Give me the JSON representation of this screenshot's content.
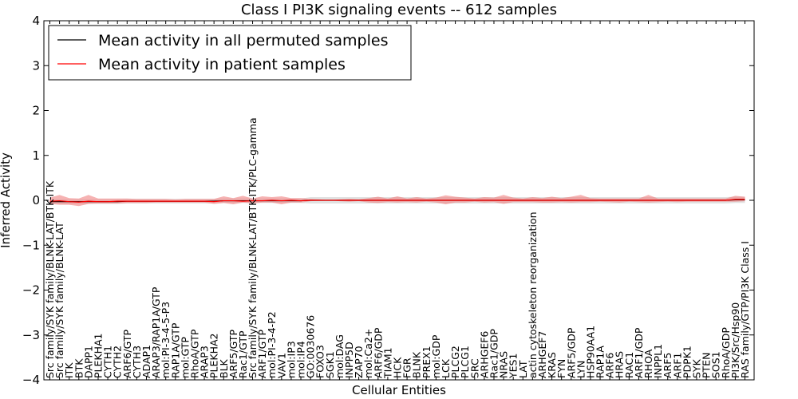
{
  "chart_data": {
    "type": "line",
    "title": "Class I PI3K signaling events -- 612 samples",
    "xlabel": "Cellular Entities",
    "ylabel": "Inferred Activity",
    "ylim": [
      -4,
      4
    ],
    "yticks": [
      -4,
      -3,
      -2,
      -1,
      0,
      1,
      2,
      3,
      4
    ],
    "ytick_labels": [
      "−4",
      "−3",
      "−2",
      "−1",
      "0",
      "1",
      "2",
      "3",
      "4"
    ],
    "legend_position": "top-left",
    "categories": [
      "Src family/SYK family/BLNK-LAT/BTK-ITK",
      "Src family/SYK family/BLNK-LAT",
      "ITK",
      "BTK",
      "DAPP1",
      "PLEKHA1",
      "CYTH1",
      "CYTH2",
      "ARF6/GTP",
      "CYTH3",
      "ADAP1",
      "ARAP3/RAP1A/GTP",
      "mol:PI-3-4-5-P3",
      "RAP1A/GTP",
      "mol:GTP",
      "RhoA/GTP",
      "ARAP3",
      "PLEKHA2",
      "BLK",
      "ARF5/GTP",
      "Rac1/GTP",
      "Src family/SYK family/BLNK-LAT/BTK-ITK/PLC-gamma",
      "ARF1/GTP",
      "mol:PI-3-4-P2",
      "VAV1",
      "mol:IP3",
      "mol:IP4",
      "GO:0030676",
      "FOXO3",
      "SGK1",
      "mol:DAG",
      "INPP5D",
      "ZAP70",
      "mol:Ca2+",
      "ARF6/GDP",
      "TIAM1",
      "HCK",
      "FGR",
      "BLNK",
      "PREX1",
      "mol:GDP",
      "LCK",
      "PLCG2",
      "PLCG1",
      "SRC",
      "ARHGEF6",
      "Rac1/GDP",
      "NRAS",
      "YES1",
      "LAT",
      "actin cytoskeleton reorganization",
      "ARHGEF7",
      "KRAS",
      "FYN",
      "ARF5/GDP",
      "LYN",
      "HSP90AA1",
      "RAP1A",
      "ARF6",
      "HRAS",
      "RAC1",
      "ARF1/GDP",
      "RHOA",
      "INPPL1",
      "ARF5",
      "ARF1",
      "PDPK1",
      "SYK",
      "PTEN",
      "SOS1",
      "RhoA/GDP",
      "PI3K/Src/Hsp90",
      "RAS family/GTP/PI3K Class I"
    ],
    "series": [
      {
        "name": "Mean activity in all permuted samples",
        "color": "#000000",
        "values": [
          -0.03,
          -0.03,
          -0.03,
          -0.03,
          -0.03,
          -0.03,
          -0.03,
          -0.03,
          -0.02,
          -0.02,
          -0.02,
          -0.02,
          -0.02,
          -0.02,
          -0.02,
          -0.02,
          -0.02,
          -0.02,
          -0.01,
          -0.01,
          -0.01,
          -0.01,
          -0.01,
          -0.01,
          -0.01,
          -0.01,
          -0.01,
          0,
          0,
          0,
          0,
          0,
          0,
          0,
          0,
          0,
          0,
          0,
          0,
          0,
          0,
          0,
          0,
          0,
          0,
          0,
          0,
          0,
          0,
          0,
          0,
          0,
          0,
          0,
          0,
          0,
          0,
          0,
          0,
          0,
          0,
          0,
          0,
          0,
          0,
          0,
          0,
          0,
          0,
          0,
          0,
          0.01,
          0.01
        ],
        "band_lower": [
          -0.08,
          -0.08,
          -0.08,
          -0.08,
          -0.08,
          -0.08,
          -0.08,
          -0.08,
          -0.07,
          -0.07,
          -0.07,
          -0.07,
          -0.07,
          -0.07,
          -0.07,
          -0.07,
          -0.07,
          -0.07,
          -0.06,
          -0.06,
          -0.06,
          -0.06,
          -0.06,
          -0.06,
          -0.06,
          -0.06,
          -0.06,
          -0.07,
          -0.07,
          -0.07,
          -0.07,
          -0.07,
          -0.07,
          -0.07,
          -0.07,
          -0.07,
          -0.07,
          -0.07,
          -0.07,
          -0.07,
          -0.07,
          -0.07,
          -0.07,
          -0.07,
          -0.07,
          -0.07,
          -0.07,
          -0.07,
          -0.07,
          -0.07,
          -0.07,
          -0.07,
          -0.07,
          -0.07,
          -0.07,
          -0.07,
          -0.07,
          -0.07,
          -0.07,
          -0.07,
          -0.07,
          -0.07,
          -0.07,
          -0.07,
          -0.07,
          -0.07,
          -0.07,
          -0.07,
          -0.07,
          -0.07,
          -0.07,
          -0.06,
          -0.06
        ],
        "band_upper": [
          0.02,
          0.02,
          0.02,
          0.02,
          0.02,
          0.02,
          0.02,
          0.02,
          0.03,
          0.03,
          0.03,
          0.03,
          0.03,
          0.03,
          0.03,
          0.03,
          0.03,
          0.03,
          0.04,
          0.04,
          0.04,
          0.04,
          0.04,
          0.04,
          0.04,
          0.04,
          0.04,
          0.07,
          0.07,
          0.07,
          0.07,
          0.07,
          0.07,
          0.07,
          0.07,
          0.07,
          0.07,
          0.07,
          0.07,
          0.07,
          0.07,
          0.07,
          0.07,
          0.07,
          0.07,
          0.07,
          0.07,
          0.07,
          0.07,
          0.07,
          0.07,
          0.07,
          0.07,
          0.07,
          0.07,
          0.07,
          0.07,
          0.07,
          0.07,
          0.07,
          0.07,
          0.07,
          0.07,
          0.07,
          0.07,
          0.07,
          0.07,
          0.07,
          0.07,
          0.07,
          0.07,
          0.08,
          0.08
        ]
      },
      {
        "name": "Mean activity in patient samples",
        "color": "#ff0000",
        "values": [
          -0.02,
          -0.01,
          -0.03,
          -0.04,
          -0.02,
          -0.03,
          -0.03,
          -0.02,
          -0.02,
          -0.02,
          -0.02,
          -0.02,
          -0.02,
          -0.02,
          -0.02,
          -0.02,
          -0.02,
          -0.03,
          -0.01,
          -0.01,
          -0.02,
          -0.01,
          -0.01,
          0,
          -0.01,
          0,
          -0.01,
          0,
          0,
          0,
          0,
          0,
          0,
          0,
          0,
          0,
          0,
          0,
          0,
          0,
          0,
          0,
          0,
          0,
          0,
          0,
          0,
          0,
          0,
          0,
          0,
          0,
          0,
          0,
          0,
          0,
          0,
          0,
          0,
          0,
          0,
          0,
          0,
          0,
          0,
          0,
          0,
          0,
          0,
          0,
          0,
          0.02,
          0.02
        ],
        "band_lower": [
          -0.08,
          -0.1,
          -0.1,
          -0.13,
          -0.08,
          -0.07,
          -0.07,
          -0.07,
          -0.06,
          -0.06,
          -0.06,
          -0.05,
          -0.05,
          -0.05,
          -0.05,
          -0.05,
          -0.05,
          -0.08,
          -0.06,
          -0.09,
          -0.05,
          -0.07,
          -0.05,
          -0.05,
          -0.09,
          -0.05,
          -0.05,
          -0.02,
          -0.01,
          0,
          -0.02,
          -0.03,
          -0.02,
          -0.05,
          -0.06,
          -0.04,
          -0.05,
          -0.04,
          -0.05,
          -0.03,
          -0.05,
          -0.09,
          -0.05,
          -0.05,
          -0.03,
          -0.05,
          -0.04,
          -0.08,
          -0.04,
          -0.04,
          -0.04,
          -0.05,
          -0.05,
          -0.04,
          -0.05,
          -0.04,
          -0.04,
          -0.03,
          -0.04,
          -0.05,
          -0.03,
          -0.04,
          -0.05,
          -0.04,
          -0.03,
          -0.04,
          -0.03,
          -0.03,
          -0.03,
          -0.03,
          -0.03,
          -0.03,
          -0.02
        ],
        "band_upper": [
          0.06,
          0.12,
          0.05,
          0.04,
          0.12,
          0.04,
          0.04,
          0.04,
          0.04,
          0.03,
          0.03,
          0.03,
          0.03,
          0.02,
          0.03,
          0.03,
          0.03,
          0.03,
          0.09,
          0.05,
          0.1,
          0.04,
          0.09,
          0.07,
          0.09,
          0.05,
          0.05,
          0.03,
          0.02,
          0,
          0.02,
          0.03,
          0.02,
          0.05,
          0.08,
          0.04,
          0.09,
          0.04,
          0.07,
          0.04,
          0.06,
          0.11,
          0.08,
          0.06,
          0.04,
          0.07,
          0.06,
          0.12,
          0.06,
          0.04,
          0.07,
          0.05,
          0.08,
          0.05,
          0.08,
          0.12,
          0.05,
          0.04,
          0.04,
          0.04,
          0.04,
          0.04,
          0.12,
          0.04,
          0.04,
          0.04,
          0.04,
          0.04,
          0.04,
          0.04,
          0.04,
          0.1,
          0.08
        ]
      }
    ]
  }
}
